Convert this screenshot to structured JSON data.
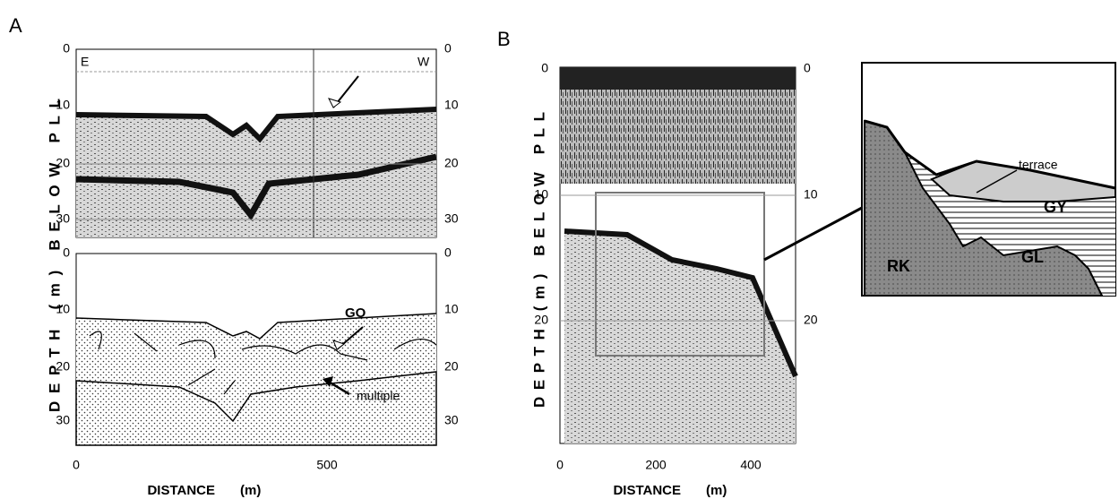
{
  "panel_a": {
    "label": "A",
    "corner_labels": [
      "E",
      "W"
    ],
    "top_left_ticks": [
      "0",
      "10",
      "20",
      "30"
    ],
    "top_right_ticks": [
      "0",
      "10",
      "20",
      "30"
    ],
    "bottom_left_ticks": [
      "0",
      "10",
      "20",
      "30"
    ],
    "bottom_right_ticks": [
      "0",
      "10",
      "20",
      "30"
    ],
    "x_ticks": [
      "0",
      "500"
    ],
    "x_label": "DISTANCE",
    "x_unit": "(m)",
    "y_label": "DEPTH (m) BELOW PLL",
    "annotations": [
      "GO",
      "multiple"
    ]
  },
  "panel_b": {
    "label": "B",
    "left_ticks": [
      "0",
      "10",
      "20"
    ],
    "right_ticks": [
      "0",
      "10",
      "20"
    ],
    "x_ticks": [
      "0",
      "200",
      "400"
    ],
    "x_label": "DISTANCE",
    "x_unit": "(m)",
    "y_label": "DEPTH (m) BELOW PLL",
    "inset_labels": [
      "terrace",
      "GY",
      "GL",
      "RK"
    ]
  }
}
